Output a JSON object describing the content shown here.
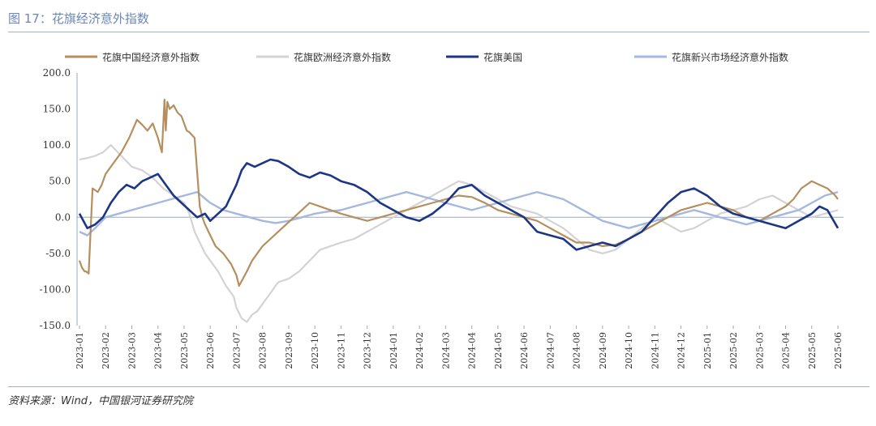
{
  "header": {
    "title": "图 17：花旗经济意外指数"
  },
  "footer": {
    "source": "资料来源：Wind，中国银河证券研究院"
  },
  "colors": {
    "china": "#b58f5e",
    "europe": "#d3d3d3",
    "us": "#1b3685",
    "em": "#a4b8e0",
    "axis": "#9ba8bd",
    "rule": "#9eb2d2"
  },
  "chart_data": {
    "type": "line",
    "ylim": [
      -150,
      200
    ],
    "yticks": [
      "200.0",
      "150.0",
      "100.0",
      "50.0",
      "0.0",
      "-50.0",
      "-100.0",
      "-150.0"
    ],
    "xticks": [
      "2023-01",
      "2023-02",
      "2023-03",
      "2023-04",
      "2023-05",
      "2023-06",
      "2023-07",
      "2023-08",
      "2023-09",
      "2023-10",
      "2023-11",
      "2023-12",
      "2024-01",
      "2024-02",
      "2024-03",
      "2024-04",
      "2024-05",
      "2024-06",
      "2024-07",
      "2024-08",
      "2024-09",
      "2024-10",
      "2024-11",
      "2024-12",
      "2025-01",
      "2025-02",
      "2025-03",
      "2025-04",
      "2025-05",
      "2025-06"
    ],
    "legend_position": "top",
    "series": [
      {
        "name": "花旗中国经济意外指数",
        "key": "china",
        "x": [
          0,
          0.1,
          0.2,
          0.25,
          0.35,
          0.5,
          0.7,
          0.85,
          1.0,
          1.3,
          1.6,
          1.9,
          2.2,
          2.4,
          2.6,
          2.8,
          3.0,
          3.15,
          3.25,
          3.3,
          3.36,
          3.45,
          3.6,
          3.75,
          3.9,
          4.0,
          4.1,
          4.2,
          4.4,
          4.6,
          4.7,
          4.8,
          5.0,
          5.2,
          5.5,
          5.8,
          6.0,
          6.1,
          6.25,
          6.4,
          6.6,
          6.8,
          7.0,
          7.3,
          7.6,
          7.9,
          8.2,
          8.5,
          8.8,
          9.2,
          9.6,
          10.0,
          10.5,
          11.0,
          11.5,
          12.0,
          12.5,
          13.0,
          13.5,
          14.0,
          14.5,
          15.0,
          15.5,
          16.0,
          16.5,
          17.0,
          17.5,
          18.0,
          18.5,
          19.0,
          19.5,
          20.0,
          20.5,
          21.0,
          21.5,
          22.0,
          22.5,
          23.0,
          23.5,
          24.0,
          24.5,
          25.0,
          25.5,
          26.0,
          26.5,
          27.0,
          27.3,
          27.6,
          28.0,
          28.3,
          28.6,
          28.9,
          29.0
        ],
        "y": [
          -60,
          -70,
          -75,
          -75,
          -78,
          40,
          35,
          45,
          60,
          75,
          90,
          110,
          135,
          128,
          120,
          130,
          110,
          90,
          163,
          120,
          160,
          150,
          155,
          145,
          140,
          130,
          120,
          118,
          110,
          15,
          0,
          -10,
          -25,
          -40,
          -50,
          -65,
          -80,
          -95,
          -85,
          -75,
          -60,
          -50,
          -40,
          -30,
          -20,
          -10,
          0,
          10,
          20,
          15,
          10,
          5,
          0,
          -5,
          0,
          5,
          10,
          15,
          20,
          25,
          30,
          28,
          20,
          10,
          5,
          0,
          -5,
          -15,
          -25,
          -35,
          -35,
          -40,
          -38,
          -30,
          -20,
          -10,
          0,
          10,
          15,
          20,
          15,
          10,
          0,
          -5,
          5,
          15,
          25,
          40,
          50,
          45,
          40,
          30,
          25
        ]
      },
      {
        "name": "花旗欧洲经济意外指数",
        "key": "europe",
        "x": [
          0,
          0.3,
          0.6,
          0.9,
          1.2,
          1.6,
          2.0,
          2.4,
          2.8,
          3.2,
          3.6,
          4.0,
          4.2,
          4.4,
          4.6,
          4.8,
          5.0,
          5.3,
          5.6,
          5.9,
          6.0,
          6.2,
          6.4,
          6.6,
          6.8,
          7.0,
          7.3,
          7.6,
          8.0,
          8.4,
          8.8,
          9.2,
          9.6,
          10.0,
          10.5,
          11.0,
          11.5,
          12.0,
          12.5,
          13.0,
          13.5,
          14.0,
          14.5,
          15.0,
          15.5,
          16.0,
          16.5,
          17.0,
          17.5,
          18.0,
          18.5,
          19.0,
          19.5,
          20.0,
          20.5,
          21.0,
          21.5,
          22.0,
          22.5,
          23.0,
          23.5,
          24.0,
          24.5,
          25.0,
          25.5,
          26.0,
          26.5,
          27.0,
          27.5,
          28.0,
          28.5,
          29.0
        ],
        "y": [
          80,
          82,
          85,
          90,
          100,
          85,
          70,
          65,
          55,
          40,
          30,
          20,
          5,
          -20,
          -35,
          -50,
          -60,
          -75,
          -95,
          -110,
          -125,
          -140,
          -145,
          -135,
          -130,
          -120,
          -105,
          -90,
          -85,
          -75,
          -60,
          -45,
          -40,
          -35,
          -30,
          -20,
          -10,
          0,
          10,
          20,
          30,
          40,
          50,
          45,
          35,
          25,
          15,
          10,
          5,
          -5,
          -15,
          -30,
          -45,
          -50,
          -45,
          -30,
          -15,
          0,
          -10,
          -20,
          -15,
          -5,
          5,
          10,
          15,
          25,
          30,
          20,
          10,
          0,
          5,
          10
        ]
      },
      {
        "name": "花旗美国",
        "key": "us",
        "x": [
          0,
          0.3,
          0.6,
          0.9,
          1.2,
          1.5,
          1.8,
          2.1,
          2.4,
          2.7,
          3.0,
          3.3,
          3.6,
          3.9,
          4.2,
          4.5,
          4.8,
          5.0,
          5.3,
          5.6,
          5.8,
          6.0,
          6.2,
          6.4,
          6.7,
          7.0,
          7.3,
          7.6,
          8.0,
          8.4,
          8.8,
          9.2,
          9.6,
          10.0,
          10.5,
          11.0,
          11.5,
          12.0,
          12.5,
          13.0,
          13.5,
          14.0,
          14.5,
          15.0,
          15.5,
          16.0,
          16.5,
          17.0,
          17.5,
          18.0,
          18.5,
          19.0,
          19.5,
          20.0,
          20.5,
          21.0,
          21.5,
          22.0,
          22.5,
          23.0,
          23.5,
          24.0,
          24.5,
          25.0,
          25.5,
          26.0,
          26.5,
          27.0,
          27.5,
          28.0,
          28.3,
          28.6,
          29.0
        ],
        "y": [
          5,
          -15,
          -10,
          0,
          20,
          35,
          45,
          40,
          50,
          55,
          60,
          45,
          30,
          20,
          10,
          0,
          5,
          -5,
          5,
          15,
          30,
          45,
          65,
          75,
          70,
          75,
          80,
          78,
          70,
          60,
          55,
          62,
          58,
          50,
          45,
          35,
          20,
          10,
          0,
          -5,
          5,
          20,
          40,
          45,
          30,
          20,
          10,
          0,
          -20,
          -25,
          -30,
          -45,
          -40,
          -35,
          -40,
          -30,
          -20,
          0,
          20,
          35,
          40,
          30,
          15,
          5,
          0,
          -5,
          -10,
          -15,
          -5,
          5,
          15,
          10,
          -15
        ]
      },
      {
        "name": "花旗新兴市场经济意外指数",
        "key": "em",
        "x": [
          0,
          0.3,
          0.6,
          1.0,
          1.5,
          2.0,
          2.5,
          3.0,
          3.5,
          4.0,
          4.5,
          5.0,
          5.5,
          6.0,
          6.5,
          7.0,
          7.5,
          8.0,
          8.5,
          9.0,
          9.5,
          10.0,
          10.5,
          11.0,
          11.5,
          12.0,
          12.5,
          13.0,
          13.5,
          14.0,
          14.5,
          15.0,
          15.5,
          16.0,
          16.5,
          17.0,
          17.5,
          18.0,
          18.5,
          19.0,
          19.5,
          20.0,
          20.5,
          21.0,
          21.5,
          22.0,
          22.5,
          23.0,
          23.5,
          24.0,
          24.5,
          25.0,
          25.5,
          26.0,
          26.5,
          27.0,
          27.5,
          28.0,
          28.5,
          29.0
        ],
        "y": [
          -20,
          -25,
          -15,
          0,
          5,
          10,
          15,
          20,
          25,
          30,
          35,
          20,
          10,
          5,
          0,
          -5,
          -8,
          -5,
          0,
          5,
          8,
          10,
          15,
          20,
          25,
          30,
          35,
          30,
          25,
          20,
          15,
          10,
          15,
          20,
          25,
          30,
          35,
          30,
          25,
          15,
          5,
          -5,
          -10,
          -15,
          -10,
          -5,
          0,
          5,
          10,
          5,
          0,
          -5,
          -10,
          -5,
          0,
          5,
          10,
          20,
          30,
          35
        ]
      }
    ]
  }
}
